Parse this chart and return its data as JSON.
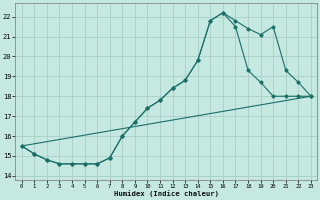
{
  "xlabel": "Humidex (Indice chaleur)",
  "background_color": "#c5e8e0",
  "grid_color": "#a8cec6",
  "line_color": "#1a7068",
  "xlim": [
    -0.5,
    23.5
  ],
  "ylim": [
    13.8,
    22.7
  ],
  "xticks": [
    0,
    1,
    2,
    3,
    4,
    5,
    6,
    7,
    8,
    9,
    10,
    11,
    12,
    13,
    14,
    15,
    16,
    17,
    18,
    19,
    20,
    21,
    22,
    23
  ],
  "yticks": [
    14,
    15,
    16,
    17,
    18,
    19,
    20,
    21,
    22
  ],
  "line1_x": [
    0,
    1,
    2,
    3,
    4,
    5,
    6,
    7,
    8,
    9,
    10,
    11,
    12,
    13,
    14,
    15,
    16,
    17,
    18,
    19,
    20,
    21,
    22,
    23
  ],
  "line1_y": [
    15.5,
    15.1,
    14.8,
    14.6,
    14.6,
    14.6,
    14.6,
    14.9,
    16.0,
    16.7,
    17.4,
    17.8,
    18.4,
    18.8,
    19.8,
    21.8,
    22.2,
    21.5,
    19.3,
    18.7,
    18.0,
    18.0,
    18.0,
    18.0
  ],
  "line2_x": [
    0,
    1,
    2,
    3,
    4,
    5,
    6,
    7,
    8,
    9,
    10,
    11,
    12,
    13,
    14,
    15,
    16,
    17,
    18,
    19,
    20,
    21,
    22,
    23
  ],
  "line2_y": [
    15.5,
    15.1,
    14.8,
    14.6,
    14.6,
    14.6,
    14.6,
    14.9,
    16.0,
    16.7,
    17.4,
    17.8,
    18.4,
    18.8,
    19.8,
    21.8,
    22.2,
    21.8,
    21.4,
    21.1,
    21.5,
    19.3,
    18.7,
    18.0
  ],
  "line3_x": [
    0,
    23
  ],
  "line3_y": [
    15.5,
    18.0
  ]
}
